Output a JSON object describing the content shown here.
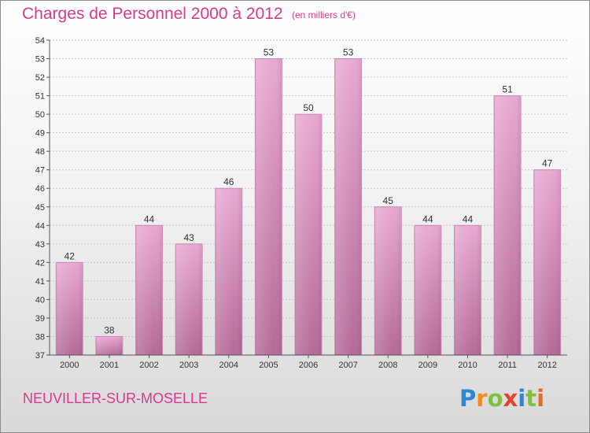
{
  "header": {
    "title": "Charges de Personnel 2000 à 2012",
    "subtitle": "(en milliers d'€)"
  },
  "footer": {
    "commune": "NEUVILLER-SUR-MOSELLE",
    "logo_letters": [
      "P",
      "r",
      "o",
      "x",
      "i",
      "t",
      "i"
    ],
    "logo_colors": [
      "#2e86d6",
      "#f08c1c",
      "#7cc23a",
      "#e8402c",
      "#2e86d6",
      "#7cc23a",
      "#e86c1c"
    ]
  },
  "colors": {
    "bar_top": "#e8a8d2",
    "bar_bottom": "#b46a98",
    "grid": "#c8c8c8",
    "text": "#333333"
  },
  "chart_data": {
    "type": "bar",
    "title": "Charges de Personnel 2000 à 2012",
    "subtitle": "(en milliers d'€)",
    "categories": [
      "2000",
      "2001",
      "2002",
      "2003",
      "2004",
      "2005",
      "2006",
      "2007",
      "2008",
      "2009",
      "2010",
      "2011",
      "2012"
    ],
    "values": [
      42,
      38,
      44,
      43,
      46,
      53,
      50,
      53,
      45,
      44,
      44,
      51,
      47
    ],
    "ylim": [
      37,
      54
    ],
    "yticks": [
      37,
      38,
      39,
      40,
      41,
      42,
      43,
      44,
      45,
      46,
      47,
      48,
      49,
      50,
      51,
      52,
      53,
      54
    ],
    "grid": true,
    "legend": "none"
  }
}
